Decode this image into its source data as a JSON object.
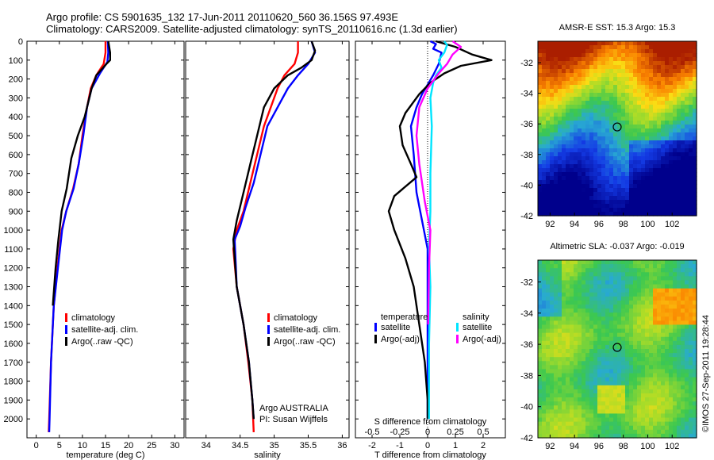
{
  "header": {
    "line1": "Argo profile: CS 5901635_132 17-Jun-2011 20110620_560 36.156S 97.493E",
    "line2": "Climatology: CARS2009. Satellite-adjusted climatology: synTS_20110616.nc (1.3d earlier)"
  },
  "footer_note": "©IMOS 27-Sep-2011 19:28:44",
  "colors": {
    "climatology": "#ff0000",
    "satellite": "#0000ff",
    "argo": "#000000",
    "salinity_satellite": "#00e5ff",
    "salinity_argo": "#ff00ff"
  },
  "chart_data": [
    {
      "type": "line",
      "id": "temperature",
      "xlabel": "temperature (deg C)",
      "xlim": [
        -2,
        32
      ],
      "xticks": [
        0,
        5,
        10,
        15,
        20,
        25,
        30
      ],
      "ylim": [
        2100,
        0
      ],
      "yticks": [
        0,
        100,
        200,
        300,
        400,
        500,
        600,
        700,
        800,
        900,
        1000,
        1100,
        1200,
        1300,
        1400,
        1500,
        1600,
        1700,
        1800,
        1900,
        2000
      ],
      "legend": [
        "climatology",
        "satellite-adj. clim.",
        "Argo(..raw -QC)"
      ],
      "series": [
        {
          "name": "climatology",
          "color": "#ff0000",
          "points": [
            [
              15,
              0
            ],
            [
              15,
              60
            ],
            [
              14.6,
              120
            ],
            [
              13,
              180
            ],
            [
              11.8,
              250
            ],
            [
              11,
              350
            ],
            [
              10,
              500
            ],
            [
              9.2,
              650
            ],
            [
              8,
              780
            ],
            [
              6.5,
              900
            ],
            [
              5.5,
              1000
            ],
            [
              4.6,
              1200
            ],
            [
              3.8,
              1400
            ],
            [
              3.2,
              1700
            ],
            [
              2.8,
              2000
            ],
            [
              2.7,
              2070
            ]
          ]
        },
        {
          "name": "satellite-adj. clim.",
          "color": "#0000ff",
          "points": [
            [
              15.5,
              0
            ],
            [
              15.6,
              60
            ],
            [
              15.4,
              110
            ],
            [
              13.8,
              170
            ],
            [
              12,
              250
            ],
            [
              11,
              350
            ],
            [
              10.2,
              500
            ],
            [
              9.2,
              650
            ],
            [
              8.1,
              780
            ],
            [
              6.5,
              900
            ],
            [
              5.6,
              1000
            ],
            [
              4.7,
              1200
            ],
            [
              3.8,
              1400
            ],
            [
              3.2,
              1700
            ],
            [
              2.9,
              2000
            ],
            [
              2.8,
              2070
            ]
          ]
        },
        {
          "name": "Argo(..raw -QC)",
          "color": "#000000",
          "points": [
            [
              15.6,
              0
            ],
            [
              16,
              60
            ],
            [
              16,
              100
            ],
            [
              15.2,
              120
            ],
            [
              13,
              180
            ],
            [
              12,
              250
            ],
            [
              10.5,
              400
            ],
            [
              9,
              500
            ],
            [
              7.6,
              620
            ],
            [
              6.6,
              780
            ],
            [
              5.5,
              900
            ],
            [
              4.8,
              1050
            ],
            [
              4.2,
              1200
            ],
            [
              3.6,
              1400
            ]
          ]
        }
      ]
    },
    {
      "type": "line",
      "id": "salinity",
      "xlabel": "salinity",
      "xlim": [
        33.7,
        36.1
      ],
      "xticks": [
        34,
        34.5,
        35,
        35.5,
        36
      ],
      "ylim": [
        2100,
        0
      ],
      "legend": [
        "climatology",
        "satellite-adj. clim.",
        "Argo(..raw -QC)"
      ],
      "annotations": [
        "Argo AUSTRALIA",
        "PI: Susan Wijffels"
      ],
      "series": [
        {
          "name": "climatology",
          "color": "#ff0000",
          "points": [
            [
              35.35,
              0
            ],
            [
              35.35,
              60
            ],
            [
              35.3,
              120
            ],
            [
              35.15,
              180
            ],
            [
              35.05,
              250
            ],
            [
              34.95,
              350
            ],
            [
              34.85,
              450
            ],
            [
              34.75,
              600
            ],
            [
              34.65,
              750
            ],
            [
              34.55,
              900
            ],
            [
              34.45,
              1000
            ],
            [
              34.4,
              1100
            ],
            [
              34.45,
              1300
            ],
            [
              34.55,
              1500
            ],
            [
              34.62,
              1700
            ],
            [
              34.68,
              1900
            ],
            [
              34.7,
              2070
            ]
          ]
        },
        {
          "name": "satellite-adj. clim.",
          "color": "#0000ff",
          "points": [
            [
              35.55,
              0
            ],
            [
              35.6,
              60
            ],
            [
              35.5,
              120
            ],
            [
              35.35,
              180
            ],
            [
              35.2,
              250
            ],
            [
              35.05,
              350
            ],
            [
              34.9,
              450
            ],
            [
              34.8,
              600
            ],
            [
              34.7,
              750
            ],
            [
              34.58,
              880
            ],
            [
              34.5,
              980
            ],
            [
              34.42,
              1050
            ],
            [
              34.45,
              1300
            ],
            [
              34.55,
              1500
            ],
            [
              34.63,
              1700
            ],
            [
              34.68,
              1900
            ],
            [
              34.7,
              2000
            ]
          ]
        },
        {
          "name": "Argo(..raw -QC)",
          "color": "#000000",
          "points": [
            [
              35.55,
              0
            ],
            [
              35.6,
              50
            ],
            [
              35.55,
              100
            ],
            [
              35.4,
              140
            ],
            [
              35.2,
              180
            ],
            [
              35.0,
              250
            ],
            [
              34.85,
              350
            ],
            [
              34.75,
              500
            ],
            [
              34.65,
              650
            ],
            [
              34.55,
              800
            ],
            [
              34.45,
              950
            ],
            [
              34.4,
              1050
            ],
            [
              34.45,
              1300
            ],
            [
              34.55,
              1500
            ],
            [
              34.63,
              1700
            ],
            [
              34.68,
              1900
            ],
            [
              34.7,
              2000
            ]
          ]
        }
      ]
    },
    {
      "type": "line",
      "id": "difference",
      "xlabel": "T difference from climatology",
      "xlabel_top": "S difference from climatology",
      "xlim": [
        -2.6,
        2.8
      ],
      "xticks": [
        -2,
        -1,
        0,
        1,
        2
      ],
      "sticks": [
        "-0.5",
        "-0.25",
        "0",
        "0.25",
        "0.5"
      ],
      "ylim": [
        2100,
        0
      ],
      "legend_temperature_title": "temperature",
      "legend_salinity_title": "salinity",
      "legend_labels": {
        "t_sat": "satellite",
        "t_argo": "Argo(-adj)",
        "s_sat": "satellite",
        "s_argo": "Argo(-adj)"
      },
      "series": [
        {
          "name": "temperature satellite",
          "color": "#0000ff",
          "points": [
            [
              0.1,
              0
            ],
            [
              0.3,
              15
            ],
            [
              0.2,
              40
            ],
            [
              0.5,
              60
            ],
            [
              0.4,
              120
            ],
            [
              0.2,
              180
            ],
            [
              0.0,
              230
            ],
            [
              -0.2,
              280
            ],
            [
              -0.4,
              350
            ],
            [
              -0.6,
              450
            ],
            [
              -0.5,
              600
            ],
            [
              -0.4,
              800
            ],
            [
              -0.2,
              950
            ],
            [
              0,
              1100
            ],
            [
              0,
              1300
            ],
            [
              0,
              1600
            ],
            [
              0,
              2000
            ]
          ]
        },
        {
          "name": "temperature Argo(-adj)",
          "color": "#000000",
          "points": [
            [
              0.3,
              0
            ],
            [
              1.0,
              30
            ],
            [
              1.6,
              70
            ],
            [
              2.3,
              100
            ],
            [
              1.2,
              130
            ],
            [
              0.6,
              170
            ],
            [
              0.1,
              220
            ],
            [
              -0.3,
              280
            ],
            [
              -0.8,
              380
            ],
            [
              -1.0,
              450
            ],
            [
              -0.9,
              550
            ],
            [
              -0.6,
              650
            ],
            [
              -0.4,
              720
            ],
            [
              -1.2,
              820
            ],
            [
              -1.4,
              900
            ],
            [
              -1.2,
              1000
            ],
            [
              -0.8,
              1150
            ],
            [
              -0.5,
              1300
            ],
            [
              -0.3,
              1500
            ],
            [
              -0.1,
              1700
            ],
            [
              0,
              1900
            ],
            [
              0,
              2000
            ]
          ]
        },
        {
          "name": "salinity satellite",
          "color": "#00e5ff",
          "points": [
            [
              0.6,
              0
            ],
            [
              0.7,
              20
            ],
            [
              0.6,
              60
            ],
            [
              0.4,
              100
            ],
            [
              0.5,
              140
            ],
            [
              0.3,
              180
            ],
            [
              0.2,
              220
            ],
            [
              0.1,
              300
            ],
            [
              0.15,
              450
            ],
            [
              0.1,
              700
            ],
            [
              0.1,
              900
            ],
            [
              0.05,
              1100
            ],
            [
              0.1,
              1300
            ],
            [
              0.05,
              1600
            ],
            [
              0.05,
              2000
            ]
          ]
        },
        {
          "name": "salinity Argo(-adj)",
          "color": "#ff00ff",
          "points": [
            [
              0.9,
              0
            ],
            [
              1.2,
              30
            ],
            [
              0.9,
              70
            ],
            [
              0.7,
              120
            ],
            [
              0.4,
              170
            ],
            [
              0.0,
              250
            ],
            [
              -0.3,
              350
            ],
            [
              -0.4,
              500
            ],
            [
              -0.3,
              650
            ],
            [
              -0.2,
              750
            ],
            [
              -0.1,
              850
            ],
            [
              0.1,
              1000
            ],
            [
              0.05,
              1200
            ],
            [
              0.02,
              1500
            ]
          ]
        }
      ]
    },
    {
      "type": "heatmap",
      "id": "sst",
      "title": "AMSR-E SST: 15.3 Argo: 15.3",
      "xticks": [
        "92",
        "94",
        "96",
        "98",
        "100",
        "102"
      ],
      "yticks": [
        "-32",
        "-34",
        "-36",
        "-38",
        "-40",
        "-42"
      ],
      "marker": {
        "lon": 97.5,
        "lat": -36.2
      }
    },
    {
      "type": "heatmap",
      "id": "sla",
      "title": "Altimetric SLA: -0.037 Argo: -0.019",
      "xticks": [
        "92",
        "94",
        "96",
        "98",
        "100",
        "102"
      ],
      "yticks": [
        "-32",
        "-34",
        "-36",
        "-38",
        "-40",
        "-42"
      ],
      "marker": {
        "lon": 97.5,
        "lat": -36.2
      }
    }
  ]
}
